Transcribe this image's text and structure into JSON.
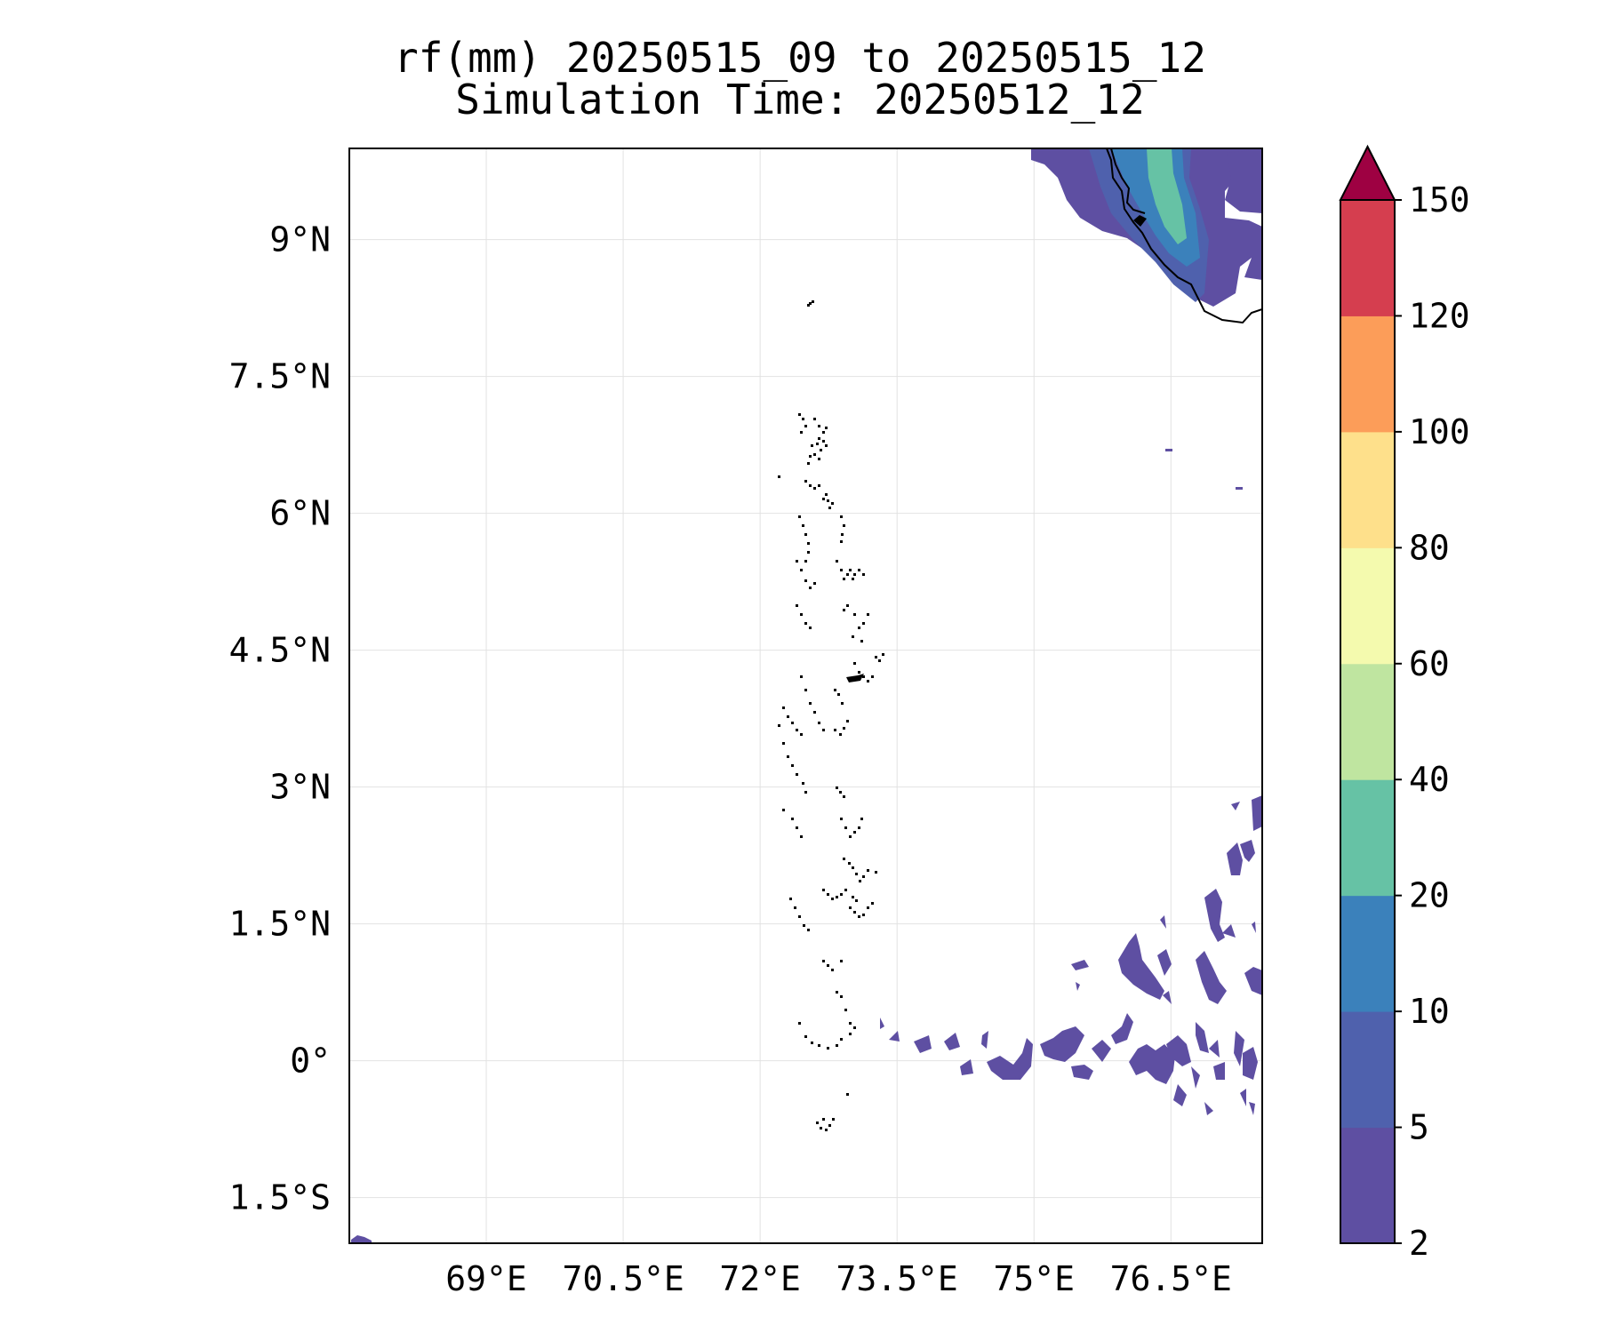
{
  "title": {
    "line1": "rf(mm) 20250515_09 to 20250515_12",
    "line2": "Simulation Time: 20250512_12"
  },
  "map": {
    "lon_range": [
      67.5,
      77.5
    ],
    "lat_range": [
      -2.0,
      10.0
    ],
    "lon_ticks": [
      {
        "value": 69.0,
        "label": "69°E"
      },
      {
        "value": 70.5,
        "label": "70.5°E"
      },
      {
        "value": 72.0,
        "label": "72°E"
      },
      {
        "value": 73.5,
        "label": "73.5°E"
      },
      {
        "value": 75.0,
        "label": "75°E"
      },
      {
        "value": 76.5,
        "label": "76.5°E"
      }
    ],
    "lat_ticks": [
      {
        "value": 9.0,
        "label": "9°N"
      },
      {
        "value": 7.5,
        "label": "7.5°N"
      },
      {
        "value": 6.0,
        "label": "6°N"
      },
      {
        "value": 4.5,
        "label": "4.5°N"
      },
      {
        "value": 3.0,
        "label": "3°N"
      },
      {
        "value": 1.5,
        "label": "1.5°N"
      },
      {
        "value": 0.0,
        "label": "0°"
      },
      {
        "value": -1.5,
        "label": "1.5°S"
      }
    ],
    "gridlines": true
  },
  "colorbar": {
    "levels": [
      {
        "label": "2",
        "color": "#5e4fa2"
      },
      {
        "label": "5",
        "color": "#4f61ad"
      },
      {
        "label": "10",
        "color": "#3b81bb"
      },
      {
        "label": "20",
        "color": "#66c2a5"
      },
      {
        "label": "40",
        "color": "#bfe5a0"
      },
      {
        "label": "60",
        "color": "#f4faae"
      },
      {
        "label": "80",
        "color": "#fee08b"
      },
      {
        "label": "100",
        "color": "#fc9d59"
      },
      {
        "label": "120",
        "color": "#d53e4f"
      },
      {
        "label": "150",
        "color": ""
      }
    ],
    "extend_color": "#9e0142",
    "extend": "max"
  },
  "chart_data": {
    "type": "heatmap",
    "variable": "rf(mm)",
    "title": "rf(mm) 20250515_09 to 20250515_12",
    "subtitle": "Simulation Time: 20250512_12",
    "bounds": [
      2,
      5,
      10,
      20,
      40,
      60,
      80,
      100,
      120,
      150
    ],
    "rain_areas": [
      {
        "band": "2-5",
        "lon": [
          [
            75.4,
            10.0
          ],
          [
            75.8,
            9.9
          ],
          [
            76.6,
            9.7
          ],
          [
            77.5,
            9.8
          ],
          [
            77.5,
            9.3
          ],
          [
            77.2,
            9.3
          ],
          [
            77.2,
            8.8
          ],
          [
            77.5,
            8.7
          ],
          [
            77.5,
            8.4
          ],
          [
            76.9,
            8.5
          ],
          [
            76.6,
            8.6
          ],
          [
            76.3,
            9.0
          ],
          [
            75.8,
            9.4
          ],
          [
            75.6,
            9.7
          ]
        ]
      },
      {
        "band": "5-10",
        "lon": [
          [
            76.3,
            10.0
          ],
          [
            76.9,
            10.0
          ],
          [
            77.0,
            9.4
          ],
          [
            76.8,
            8.8
          ],
          [
            76.6,
            8.5
          ],
          [
            76.4,
            9.0
          ],
          [
            76.3,
            9.5
          ]
        ]
      },
      {
        "band": "10-20",
        "lon": [
          [
            76.5,
            10.0
          ],
          [
            76.9,
            10.0
          ],
          [
            76.9,
            9.4
          ],
          [
            76.7,
            8.9
          ],
          [
            76.5,
            9.3
          ]
        ]
      },
      {
        "band": "20-40",
        "lon": [
          [
            76.6,
            9.8
          ],
          [
            76.8,
            9.8
          ],
          [
            76.8,
            9.3
          ],
          [
            76.6,
            9.1
          ],
          [
            76.6,
            9.5
          ]
        ]
      },
      {
        "band": "2-5",
        "lon": [
          [
            73.8,
            0.3
          ],
          [
            75.2,
            0.4
          ],
          [
            76.2,
            0.8
          ],
          [
            77.5,
            1.0
          ],
          [
            77.5,
            0.1
          ],
          [
            76.8,
            -0.3
          ],
          [
            76.0,
            -0.3
          ],
          [
            75.2,
            -0.1
          ],
          [
            74.4,
            0.0
          ],
          [
            73.8,
            0.1
          ]
        ]
      },
      {
        "band": "2-5",
        "lon": [
          [
            76.3,
            1.4
          ],
          [
            77.0,
            1.8
          ],
          [
            77.5,
            2.6
          ],
          [
            77.5,
            1.3
          ],
          [
            77.2,
            1.0
          ],
          [
            76.8,
            0.9
          ],
          [
            76.4,
            1.1
          ]
        ]
      }
    ],
    "coastline_features": [
      "Indian peninsula coast (NE corner)",
      "Maldives atolls (72.5–73.8°E, -0.7–7.1°N)"
    ]
  }
}
